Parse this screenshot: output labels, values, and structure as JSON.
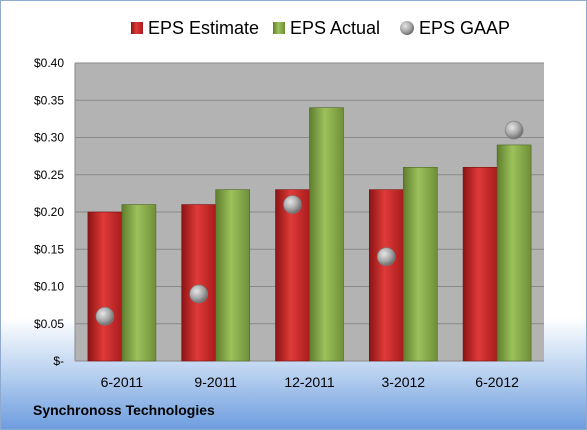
{
  "company": "Synchronoss Technologies",
  "colors": {
    "estimate": "#d42a2a",
    "actual": "#8dae4f",
    "gaap": "#a0a0a0",
    "plot_area": "#b3b3b3"
  },
  "chart_data": {
    "type": "bar",
    "categories": [
      "6-2011",
      "9-2011",
      "12-2011",
      "3-2012",
      "6-2012"
    ],
    "series": [
      {
        "name": "EPS Estimate",
        "kind": "bar",
        "values": [
          0.2,
          0.21,
          0.23,
          0.23,
          0.26
        ]
      },
      {
        "name": "EPS Actual",
        "kind": "bar",
        "values": [
          0.21,
          0.23,
          0.34,
          0.26,
          0.29
        ]
      },
      {
        "name": "EPS GAAP",
        "kind": "marker",
        "values": [
          0.06,
          0.09,
          0.21,
          0.14,
          0.31
        ]
      }
    ],
    "y_ticks": [
      "$-",
      "$0.05",
      "$0.10",
      "$0.15",
      "$0.20",
      "$0.25",
      "$0.30",
      "$0.35",
      "$0.40"
    ],
    "ylim": [
      0,
      0.4
    ],
    "grid": true,
    "legend_position": "top"
  }
}
